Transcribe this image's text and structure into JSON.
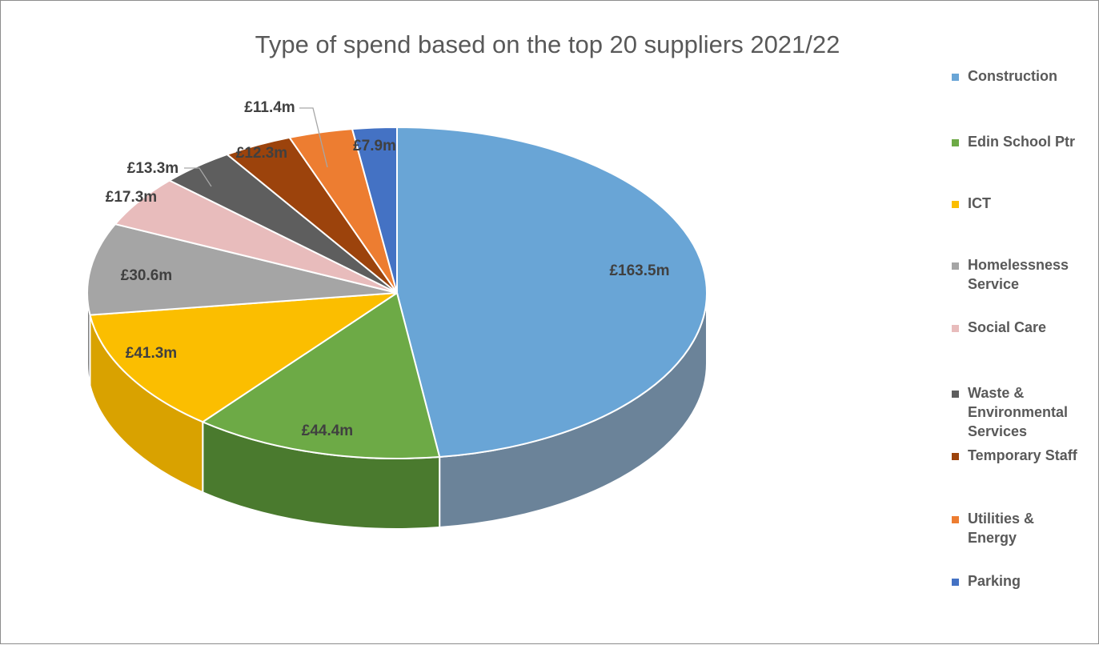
{
  "chart_data": {
    "type": "pie",
    "style": "3d",
    "title": "Type of spend based on the top 20 suppliers 2021/22",
    "unit_prefix": "£",
    "unit_suffix": "m",
    "legend_position": "right",
    "slices": [
      {
        "label": "Construction",
        "legend_lines": [
          "Construction"
        ],
        "value": 163.5,
        "value_label": "£163.5m",
        "color": "#69A5D6",
        "side_color": "#6B8399"
      },
      {
        "label": "Edin School Ptr",
        "legend_lines": [
          "Edin School Ptr"
        ],
        "value": 44.4,
        "value_label": "£44.4m",
        "color": "#6DAA46",
        "side_color": "#4A7A2E"
      },
      {
        "label": "ICT",
        "legend_lines": [
          "ICT"
        ],
        "value": 41.3,
        "value_label": "£41.3m",
        "color": "#FBBE00",
        "side_color": "#D9A200"
      },
      {
        "label": "Homelessness Service",
        "legend_lines": [
          "Homelessness",
          "Service"
        ],
        "value": 30.6,
        "value_label": "£30.6m",
        "color": "#A5A5A5",
        "side_color": "#7F7F7F"
      },
      {
        "label": "Social Care",
        "legend_lines": [
          "Social Care"
        ],
        "value": 17.3,
        "value_label": "£17.3m",
        "color": "#E8BCBC",
        "side_color": "#C89C9C"
      },
      {
        "label": "Waste & Environmental Services",
        "legend_lines": [
          "Waste &",
          "Environmental",
          "Services"
        ],
        "value": 13.3,
        "value_label": "£13.3m",
        "color": "#5E5E5E",
        "side_color": "#404040"
      },
      {
        "label": "Temporary Staff",
        "legend_lines": [
          "Temporary Staff"
        ],
        "value": 12.3,
        "value_label": "£12.3m",
        "color": "#9C430C",
        "side_color": "#73300A"
      },
      {
        "label": "Utilities & Energy",
        "legend_lines": [
          "Utilities &",
          "Energy"
        ],
        "value": 11.4,
        "value_label": "£11.4m",
        "color": "#ED7D31",
        "side_color": "#C0601E"
      },
      {
        "label": "Parking",
        "legend_lines": [
          "Parking"
        ],
        "value": 7.9,
        "value_label": "£7.9m",
        "color": "#4472C4",
        "side_color": "#2F5597"
      }
    ]
  }
}
